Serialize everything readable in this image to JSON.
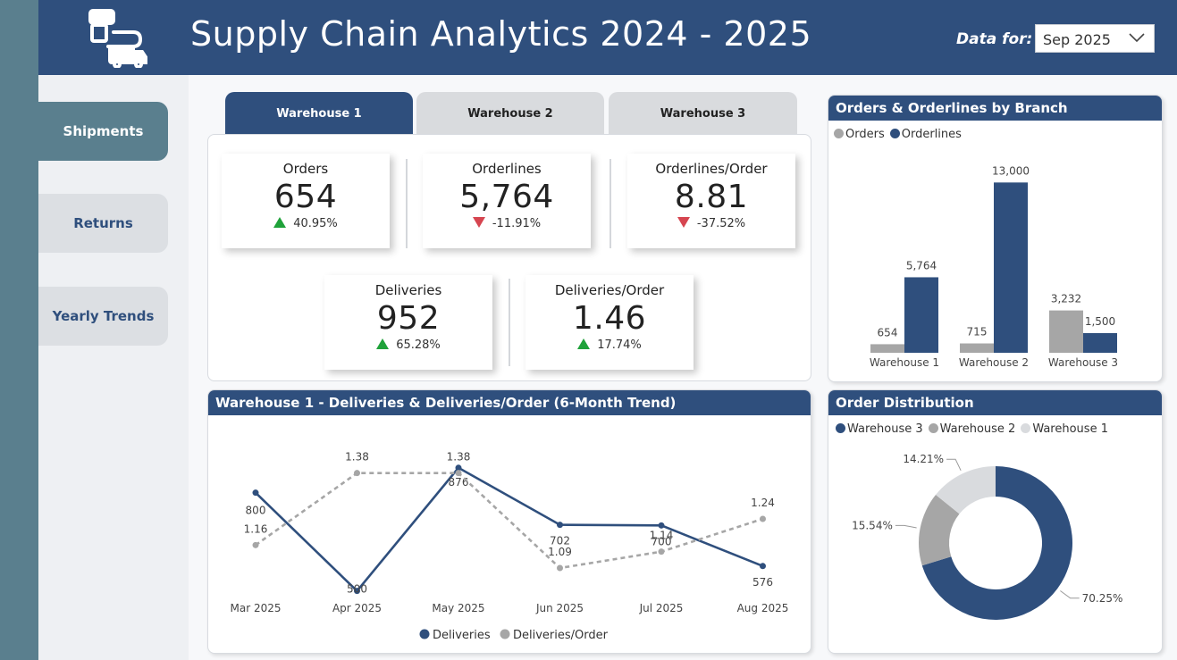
{
  "header": {
    "title": "Supply Chain Analytics 2024 - 2025",
    "data_for_label": "Data for:",
    "selected_month": "Sep 2025"
  },
  "nav": {
    "items": [
      {
        "label": "Shipments",
        "active": true
      },
      {
        "label": "Returns",
        "active": false
      },
      {
        "label": "Yearly Trends",
        "active": false
      }
    ]
  },
  "tabs": [
    {
      "label": "Warehouse 1",
      "active": true
    },
    {
      "label": "Warehouse 2",
      "active": false
    },
    {
      "label": "Warehouse 3",
      "active": false
    }
  ],
  "kpis": {
    "orders": {
      "label": "Orders",
      "value": "654",
      "change": "40.95%",
      "direction": "up"
    },
    "orderlines": {
      "label": "Orderlines",
      "value": "5,764",
      "change": "-11.91%",
      "direction": "down"
    },
    "orderlines_per_order": {
      "label": "Orderlines/Order",
      "value": "8.81",
      "change": "-37.52%",
      "direction": "down"
    },
    "deliveries": {
      "label": "Deliveries",
      "value": "952",
      "change": "65.28%",
      "direction": "up"
    },
    "deliveries_per_order": {
      "label": "Deliveries/Order",
      "value": "1.46",
      "change": "17.74%",
      "direction": "up"
    }
  },
  "colors": {
    "navy": "#2f4f7d",
    "gray": "#a6a6a6",
    "light_gray": "#d9dbde",
    "up": "#1fa23a",
    "down": "#d64550"
  },
  "branch_card": {
    "title": "Orders & Orderlines by Branch"
  },
  "trend_card": {
    "title": "Warehouse 1 - Deliveries & Deliveries/Order (6-Month Trend)"
  },
  "distribution_card": {
    "title": "Order Distribution"
  },
  "chart_data": [
    {
      "type": "bar",
      "title": "Orders & Orderlines by Branch",
      "categories": [
        "Warehouse 1",
        "Warehouse 2",
        "Warehouse 3"
      ],
      "series": [
        {
          "name": "Orders",
          "values": [
            654,
            715,
            3232
          ],
          "labels": [
            "654",
            "715",
            "3,232"
          ],
          "color": "#a6a6a6"
        },
        {
          "name": "Orderlines",
          "values": [
            5764,
            13000,
            1500
          ],
          "labels": [
            "5,764",
            "13,000",
            "1,500"
          ],
          "color": "#2f4f7d"
        }
      ],
      "ylim": [
        0,
        13500
      ],
      "legend": "top-left",
      "grid": false
    },
    {
      "type": "line",
      "title": "Warehouse 1 - Deliveries & Deliveries/Order (6-Month Trend)",
      "categories": [
        "Mar 2025",
        "Apr 2025",
        "May 2025",
        "Jun 2025",
        "Jul 2025",
        "Aug 2025"
      ],
      "series": [
        {
          "name": "Deliveries",
          "values": [
            800,
            500,
            876,
            702,
            700,
            576
          ],
          "labels": [
            "800",
            "500",
            "876",
            "702",
            "700",
            "576"
          ],
          "color": "#2f4f7d",
          "style": "solid",
          "ylim": [
            480,
            900
          ]
        },
        {
          "name": "Deliveries/Order",
          "values": [
            1.16,
            1.38,
            1.38,
            1.09,
            1.14,
            1.24
          ],
          "labels": [
            "1.16",
            "1.38",
            "1.38",
            "1.09",
            "1.14",
            "1.24"
          ],
          "color": "#a6a6a6",
          "style": "dashed",
          "ylim": [
            1.0,
            1.42
          ]
        }
      ],
      "legend": "bottom-center",
      "grid": false
    },
    {
      "type": "pie",
      "title": "Order Distribution",
      "donut": true,
      "slices": [
        {
          "name": "Warehouse 3",
          "value": 70.25,
          "label": "70.25%",
          "color": "#2f4f7d"
        },
        {
          "name": "Warehouse 2",
          "value": 15.54,
          "label": "15.54%",
          "color": "#a6a6a6"
        },
        {
          "name": "Warehouse 1",
          "value": 14.21,
          "label": "14.21%",
          "color": "#d9dbde"
        }
      ],
      "legend": "top-left"
    }
  ]
}
